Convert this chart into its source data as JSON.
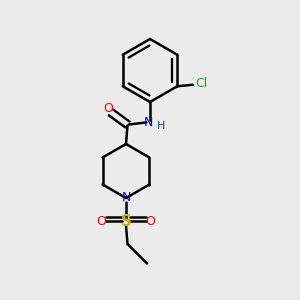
{
  "background_color": "#ececec",
  "bond_color": "#000000",
  "bond_width": 1.8,
  "figsize": [
    3.0,
    3.0
  ],
  "dpi": 100,
  "colors": {
    "N": "#0000ff",
    "O": "#ff0000",
    "S": "#ccaa00",
    "Cl": "#00bb00",
    "H": "#006060",
    "C": "#000000"
  }
}
